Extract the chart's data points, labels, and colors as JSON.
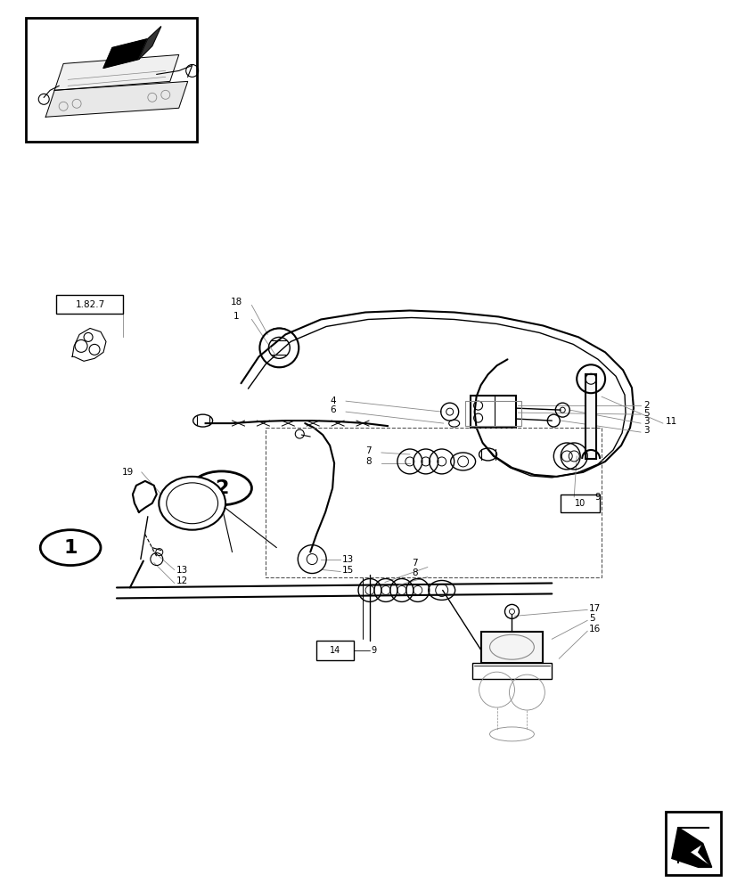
{
  "bg_color": "#ffffff",
  "line_color": "#000000",
  "fig_width": 8.28,
  "fig_height": 10.0,
  "dpi": 100,
  "gray": "#888888",
  "darkgray": "#555555"
}
